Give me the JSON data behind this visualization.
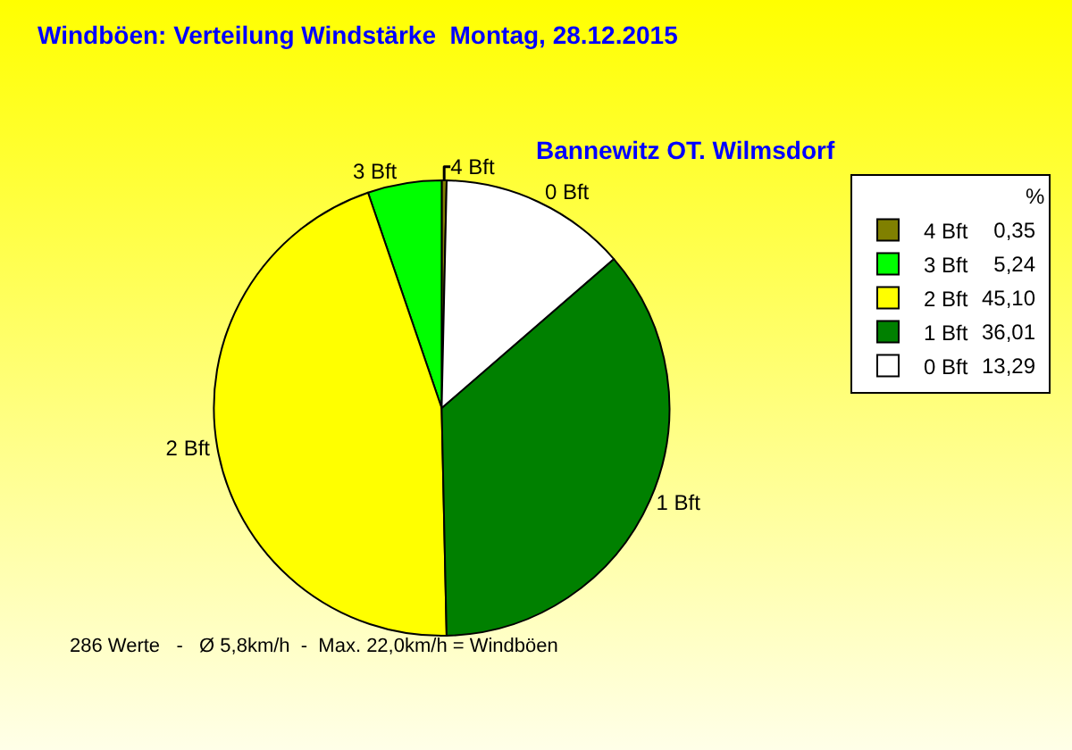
{
  "chart_data": {
    "type": "pie",
    "title": "Windböen: Verteilung Windstärke  Montag, 28.12.2015",
    "subtitle": "Bannewitz OT. Wilmsdorf",
    "legend_title": "%",
    "categories": [
      "4 Bft",
      "3 Bft",
      "2 Bft",
      "1 Bft",
      "0 Bft"
    ],
    "values": [
      0.35,
      5.24,
      45.1,
      36.01,
      13.29
    ],
    "value_labels": [
      "0,35",
      "5,24",
      "45,10",
      "36,01",
      "13,29"
    ],
    "colors": [
      "#808000",
      "#00ff00",
      "#ffff00",
      "#008000",
      "#ffffff"
    ],
    "legend": "top right",
    "annotations": [
      "286 Werte   -   Ø 5,8km/h  -  Max. 22,0km/h = Windböen"
    ]
  }
}
